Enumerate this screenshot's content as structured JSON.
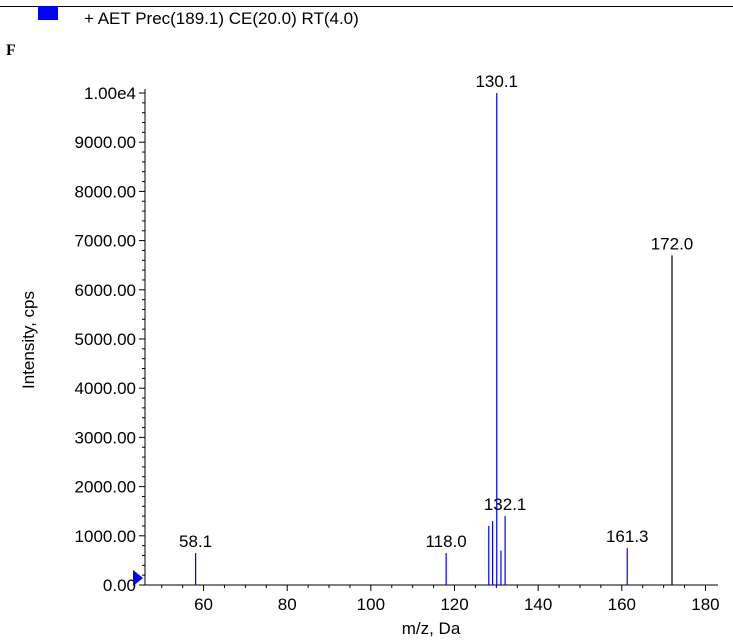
{
  "legend": {
    "label": "+ AET Prec(189.1) CE(20.0) RT(4.0)",
    "swatch_color": "#0000ff"
  },
  "panel": {
    "letter": "F"
  },
  "chart_data": {
    "type": "bar",
    "title": "",
    "xlabel": "m/z, Da",
    "ylabel": "Intensity, cps",
    "xlim": [
      46,
      183
    ],
    "ylim": [
      0,
      10000
    ],
    "x_ticks": [
      60,
      80,
      100,
      120,
      140,
      160,
      180
    ],
    "y_ticks": [
      {
        "value": 0,
        "label": "0.00"
      },
      {
        "value": 1000,
        "label": "1000.00"
      },
      {
        "value": 2000,
        "label": "2000.00"
      },
      {
        "value": 3000,
        "label": "3000.00"
      },
      {
        "value": 4000,
        "label": "4000.00"
      },
      {
        "value": 5000,
        "label": "5000.00"
      },
      {
        "value": 6000,
        "label": "6000.00"
      },
      {
        "value": 7000,
        "label": "7000.00"
      },
      {
        "value": 8000,
        "label": "8000.00"
      },
      {
        "value": 9000,
        "label": "9000.00"
      },
      {
        "value": 10000,
        "label": "1.00e4"
      }
    ],
    "grid": false,
    "peaks": [
      {
        "mz": 58.1,
        "intensity": 650,
        "label": "58.1",
        "color": "#0000ff"
      },
      {
        "mz": 118.0,
        "intensity": 650,
        "label": "118.0",
        "color": "#0000ff"
      },
      {
        "mz": 128.2,
        "intensity": 1200,
        "label": "",
        "color": "#0000ff"
      },
      {
        "mz": 129.1,
        "intensity": 1300,
        "label": "",
        "color": "#0000ff"
      },
      {
        "mz": 130.1,
        "intensity": 10000,
        "label": "130.1",
        "color": "#0000ff"
      },
      {
        "mz": 131.1,
        "intensity": 700,
        "label": "",
        "color": "#0000ff"
      },
      {
        "mz": 132.1,
        "intensity": 1400,
        "label": "132.1",
        "color": "#0000ff"
      },
      {
        "mz": 161.3,
        "intensity": 750,
        "label": "161.3",
        "color": "#0000ff"
      },
      {
        "mz": 172.0,
        "intensity": 6700,
        "label": "172.0",
        "color": "#000000"
      }
    ]
  }
}
